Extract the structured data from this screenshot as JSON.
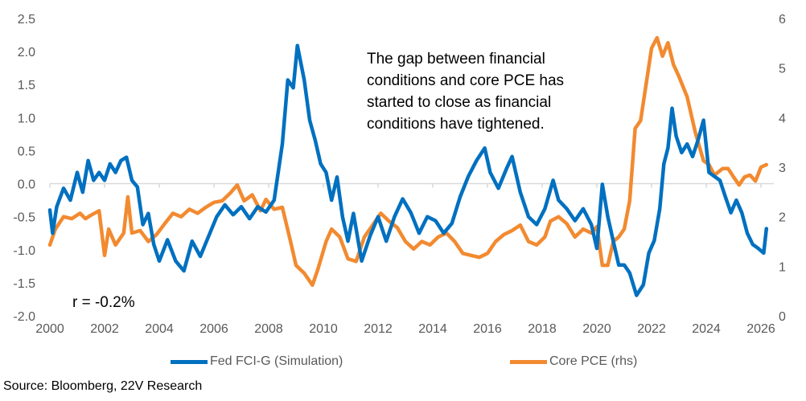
{
  "chart_data": {
    "type": "line",
    "title": "",
    "annotation": "The gap between financial conditions and core PCE has started to close as financial conditions have tightened.",
    "correlation_label": "r =  -0.2%",
    "source": "Source: Bloomberg, 22V Research",
    "xlabel": "",
    "x_ticks": [
      "2000",
      "2002",
      "2004",
      "2006",
      "2008",
      "2010",
      "2012",
      "2014",
      "2016",
      "2018",
      "2020",
      "2022",
      "2024",
      "2026"
    ],
    "xlim": [
      2000,
      2026.2
    ],
    "y_left": {
      "label": "",
      "ylim": [
        -2.0,
        2.5
      ],
      "ticks": [
        "2.5",
        "2.0",
        "1.5",
        "1.0",
        "0.5",
        "0.0",
        "-0.5",
        "-1.0",
        "-1.5",
        "-2.0"
      ]
    },
    "y_right": {
      "label": "",
      "ylim": [
        0,
        6
      ],
      "ticks": [
        "6",
        "5",
        "4",
        "3",
        "2",
        "1",
        "0"
      ]
    },
    "grid": false,
    "zero_line": true,
    "legend_position": "bottom",
    "series": [
      {
        "name": "Fed FCI-G (Simulation)",
        "axis": "left",
        "color": "#0070C0",
        "points": [
          [
            2000.0,
            -0.4
          ],
          [
            2000.1,
            -0.75
          ],
          [
            2000.25,
            -0.35
          ],
          [
            2000.5,
            -0.07
          ],
          [
            2000.75,
            -0.25
          ],
          [
            2001.0,
            0.17
          ],
          [
            2001.2,
            -0.13
          ],
          [
            2001.4,
            0.35
          ],
          [
            2001.6,
            0.05
          ],
          [
            2001.8,
            0.17
          ],
          [
            2002.0,
            0.05
          ],
          [
            2002.2,
            0.3
          ],
          [
            2002.4,
            0.17
          ],
          [
            2002.6,
            0.35
          ],
          [
            2002.8,
            0.4
          ],
          [
            2003.0,
            0.05
          ],
          [
            2003.2,
            -0.05
          ],
          [
            2003.4,
            -0.62
          ],
          [
            2003.6,
            -0.45
          ],
          [
            2003.8,
            -0.92
          ],
          [
            2004.0,
            -1.17
          ],
          [
            2004.3,
            -0.85
          ],
          [
            2004.6,
            -1.17
          ],
          [
            2004.9,
            -1.32
          ],
          [
            2005.2,
            -0.87
          ],
          [
            2005.5,
            -1.1
          ],
          [
            2005.8,
            -0.8
          ],
          [
            2006.1,
            -0.5
          ],
          [
            2006.4,
            -0.32
          ],
          [
            2006.7,
            -0.47
          ],
          [
            2007.0,
            -0.35
          ],
          [
            2007.3,
            -0.53
          ],
          [
            2007.6,
            -0.35
          ],
          [
            2007.9,
            -0.43
          ],
          [
            2008.2,
            -0.25
          ],
          [
            2008.5,
            0.6
          ],
          [
            2008.7,
            1.57
          ],
          [
            2008.9,
            1.45
          ],
          [
            2009.05,
            2.09
          ],
          [
            2009.3,
            1.57
          ],
          [
            2009.5,
            0.96
          ],
          [
            2009.7,
            0.66
          ],
          [
            2009.9,
            0.3
          ],
          [
            2010.1,
            0.17
          ],
          [
            2010.3,
            -0.25
          ],
          [
            2010.5,
            0.1
          ],
          [
            2010.7,
            -0.5
          ],
          [
            2010.9,
            -0.87
          ],
          [
            2011.1,
            -0.45
          ],
          [
            2011.4,
            -1.17
          ],
          [
            2011.7,
            -0.8
          ],
          [
            2012.0,
            -0.5
          ],
          [
            2012.3,
            -0.87
          ],
          [
            2012.6,
            -0.5
          ],
          [
            2012.9,
            -0.23
          ],
          [
            2013.2,
            -0.44
          ],
          [
            2013.5,
            -0.75
          ],
          [
            2013.8,
            -0.5
          ],
          [
            2014.1,
            -0.56
          ],
          [
            2014.4,
            -0.75
          ],
          [
            2014.7,
            -0.6
          ],
          [
            2015.0,
            -0.2
          ],
          [
            2015.3,
            0.11
          ],
          [
            2015.6,
            0.35
          ],
          [
            2015.9,
            0.54
          ],
          [
            2016.1,
            0.17
          ],
          [
            2016.4,
            -0.07
          ],
          [
            2016.7,
            0.23
          ],
          [
            2016.9,
            0.41
          ],
          [
            2017.2,
            -0.13
          ],
          [
            2017.5,
            -0.5
          ],
          [
            2017.8,
            -0.62
          ],
          [
            2018.1,
            -0.38
          ],
          [
            2018.4,
            0.05
          ],
          [
            2018.6,
            -0.25
          ],
          [
            2018.9,
            -0.38
          ],
          [
            2019.2,
            -0.56
          ],
          [
            2019.5,
            -0.38
          ],
          [
            2019.8,
            -0.62
          ],
          [
            2020.0,
            -0.98
          ],
          [
            2020.2,
            -0.01
          ],
          [
            2020.4,
            -0.5
          ],
          [
            2020.6,
            -0.87
          ],
          [
            2020.8,
            -1.23
          ],
          [
            2021.0,
            -1.23
          ],
          [
            2021.2,
            -1.35
          ],
          [
            2021.45,
            -1.69
          ],
          [
            2021.7,
            -1.53
          ],
          [
            2021.9,
            -1.05
          ],
          [
            2022.1,
            -0.86
          ],
          [
            2022.3,
            -0.38
          ],
          [
            2022.45,
            0.3
          ],
          [
            2022.6,
            0.54
          ],
          [
            2022.75,
            1.14
          ],
          [
            2022.9,
            0.72
          ],
          [
            2023.1,
            0.47
          ],
          [
            2023.3,
            0.6
          ],
          [
            2023.5,
            0.41
          ],
          [
            2023.7,
            0.66
          ],
          [
            2023.9,
            0.96
          ],
          [
            2024.1,
            0.17
          ],
          [
            2024.3,
            0.11
          ],
          [
            2024.5,
            0.05
          ],
          [
            2024.7,
            -0.2
          ],
          [
            2024.9,
            -0.44
          ],
          [
            2025.1,
            -0.25
          ],
          [
            2025.3,
            -0.44
          ],
          [
            2025.5,
            -0.75
          ],
          [
            2025.7,
            -0.92
          ],
          [
            2025.9,
            -0.98
          ],
          [
            2026.1,
            -1.05
          ],
          [
            2026.2,
            -0.68
          ]
        ]
      },
      {
        "name": "Core PCE (rhs)",
        "axis": "right",
        "color": "#F28A30",
        "points": [
          [
            2000.0,
            1.43
          ],
          [
            2000.2,
            1.75
          ],
          [
            2000.5,
            2.0
          ],
          [
            2000.8,
            1.96
          ],
          [
            2001.1,
            2.07
          ],
          [
            2001.3,
            1.96
          ],
          [
            2001.5,
            2.03
          ],
          [
            2001.8,
            2.12
          ],
          [
            2002.0,
            1.22
          ],
          [
            2002.15,
            1.75
          ],
          [
            2002.4,
            1.43
          ],
          [
            2002.7,
            1.67
          ],
          [
            2002.85,
            2.4
          ],
          [
            2003.0,
            1.67
          ],
          [
            2003.3,
            1.72
          ],
          [
            2003.6,
            1.5
          ],
          [
            2003.9,
            1.64
          ],
          [
            2004.2,
            1.86
          ],
          [
            2004.5,
            2.07
          ],
          [
            2004.8,
            2.0
          ],
          [
            2005.1,
            2.15
          ],
          [
            2005.4,
            2.07
          ],
          [
            2005.7,
            2.19
          ],
          [
            2006.0,
            2.29
          ],
          [
            2006.3,
            2.32
          ],
          [
            2006.6,
            2.48
          ],
          [
            2006.85,
            2.64
          ],
          [
            2007.1,
            2.32
          ],
          [
            2007.4,
            2.44
          ],
          [
            2007.7,
            2.12
          ],
          [
            2007.9,
            2.35
          ],
          [
            2008.2,
            2.15
          ],
          [
            2008.5,
            2.19
          ],
          [
            2008.8,
            1.5
          ],
          [
            2009.0,
            1.02
          ],
          [
            2009.3,
            0.86
          ],
          [
            2009.6,
            0.62
          ],
          [
            2009.8,
            0.94
          ],
          [
            2010.1,
            1.5
          ],
          [
            2010.3,
            1.75
          ],
          [
            2010.6,
            1.59
          ],
          [
            2010.9,
            1.15
          ],
          [
            2011.2,
            1.1
          ],
          [
            2011.5,
            1.59
          ],
          [
            2011.8,
            1.83
          ],
          [
            2012.1,
            2.07
          ],
          [
            2012.4,
            1.91
          ],
          [
            2012.7,
            1.78
          ],
          [
            2013.0,
            1.5
          ],
          [
            2013.3,
            1.35
          ],
          [
            2013.6,
            1.5
          ],
          [
            2013.9,
            1.43
          ],
          [
            2014.2,
            1.59
          ],
          [
            2014.5,
            1.67
          ],
          [
            2014.8,
            1.5
          ],
          [
            2015.1,
            1.26
          ],
          [
            2015.4,
            1.22
          ],
          [
            2015.7,
            1.18
          ],
          [
            2016.0,
            1.26
          ],
          [
            2016.3,
            1.5
          ],
          [
            2016.6,
            1.64
          ],
          [
            2016.9,
            1.72
          ],
          [
            2017.2,
            1.83
          ],
          [
            2017.5,
            1.5
          ],
          [
            2017.8,
            1.43
          ],
          [
            2018.1,
            1.59
          ],
          [
            2018.3,
            1.91
          ],
          [
            2018.6,
            2.0
          ],
          [
            2018.9,
            1.86
          ],
          [
            2019.2,
            1.59
          ],
          [
            2019.5,
            1.75
          ],
          [
            2019.8,
            1.67
          ],
          [
            2020.0,
            1.8
          ],
          [
            2020.2,
            1.02
          ],
          [
            2020.4,
            1.02
          ],
          [
            2020.6,
            1.5
          ],
          [
            2020.8,
            1.59
          ],
          [
            2021.0,
            1.75
          ],
          [
            2021.2,
            2.32
          ],
          [
            2021.4,
            3.78
          ],
          [
            2021.6,
            3.94
          ],
          [
            2021.8,
            4.67
          ],
          [
            2022.0,
            5.4
          ],
          [
            2022.2,
            5.61
          ],
          [
            2022.4,
            5.24
          ],
          [
            2022.6,
            5.51
          ],
          [
            2022.8,
            5.07
          ],
          [
            2023.0,
            4.83
          ],
          [
            2023.3,
            4.42
          ],
          [
            2023.6,
            3.7
          ],
          [
            2023.9,
            3.13
          ],
          [
            2024.1,
            3.05
          ],
          [
            2024.3,
            2.84
          ],
          [
            2024.6,
            2.97
          ],
          [
            2024.8,
            2.97
          ],
          [
            2025.0,
            2.8
          ],
          [
            2025.2,
            2.64
          ],
          [
            2025.4,
            2.8
          ],
          [
            2025.6,
            2.84
          ],
          [
            2025.8,
            2.72
          ],
          [
            2026.0,
            3.0
          ],
          [
            2026.2,
            3.05
          ]
        ]
      }
    ]
  }
}
